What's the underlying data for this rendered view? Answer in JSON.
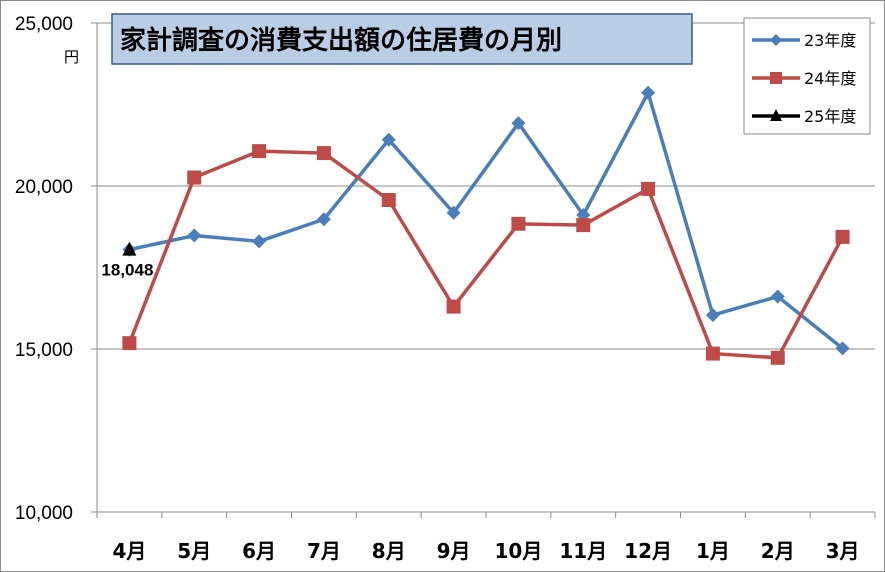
{
  "chart_data": {
    "type": "line",
    "title": "家計調査の消費支出額の住居費の月別",
    "ylabel": "円",
    "ylim": [
      10000,
      25000
    ],
    "yticks": [
      10000,
      15000,
      20000,
      25000
    ],
    "ytick_labels": [
      "10,000",
      "15,000",
      "20,000",
      "25,000"
    ],
    "categories": [
      "4月",
      "5月",
      "6月",
      "7月",
      "8月",
      "9月",
      "10月",
      "11月",
      "12月",
      "1月",
      "2月",
      "3月"
    ],
    "grid": true,
    "legend_position": "top-right",
    "series": [
      {
        "name": "23年度",
        "color": "#4a7ebb",
        "marker": "diamond",
        "values": [
          18048,
          18480,
          18300,
          18980,
          21420,
          19180,
          21930,
          19110,
          22860,
          16040,
          16610,
          15020
        ]
      },
      {
        "name": "24年度",
        "color": "#be4b48",
        "marker": "square",
        "values": [
          15180,
          20260,
          21070,
          21010,
          19570,
          16300,
          18840,
          18800,
          19910,
          14860,
          14730,
          18440
        ]
      },
      {
        "name": "25年度",
        "color": "#000000",
        "marker": "triangle",
        "values": [
          18048,
          null,
          null,
          null,
          null,
          null,
          null,
          null,
          null,
          null,
          null,
          null
        ]
      }
    ],
    "annotations": [
      {
        "series": "25年度",
        "category": "4月",
        "text": "18,048"
      }
    ]
  }
}
